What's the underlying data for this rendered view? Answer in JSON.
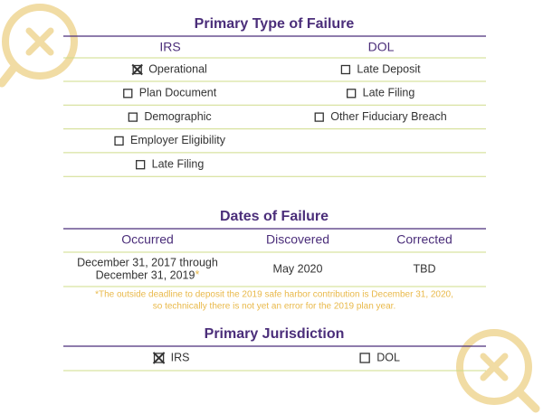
{
  "type_of_failure": {
    "title": "Primary Type of Failure",
    "columns": [
      {
        "header": "IRS",
        "items": [
          {
            "label": "Operational",
            "checked": true
          },
          {
            "label": "Plan Document",
            "checked": false
          },
          {
            "label": "Demographic",
            "checked": false
          },
          {
            "label": "Employer Eligibility",
            "checked": false
          },
          {
            "label": "Late Filing",
            "checked": false
          }
        ]
      },
      {
        "header": "DOL",
        "items": [
          {
            "label": "Late Deposit",
            "checked": false
          },
          {
            "label": "Late Filing",
            "checked": false
          },
          {
            "label": "Other Fiduciary Breach",
            "checked": false
          }
        ]
      }
    ]
  },
  "dates": {
    "title": "Dates of Failure",
    "headers": [
      "Occurred",
      "Discovered",
      "Corrected"
    ],
    "occurred_lines": [
      "December 31, 2017 through",
      "December 31, 2019"
    ],
    "note_marker": "*",
    "discovered": "May 2020",
    "corrected": "TBD",
    "footnote_lines": [
      "*The outside deadline to deposit the 2019 safe harbor contribution is December 31, 2020,",
      "so technically there is not yet an error for the 2019 plan year."
    ]
  },
  "jurisdiction": {
    "title": "Primary Jurisdiction",
    "options": [
      {
        "label": "IRS",
        "checked": true
      },
      {
        "label": "DOL",
        "checked": false
      }
    ]
  }
}
